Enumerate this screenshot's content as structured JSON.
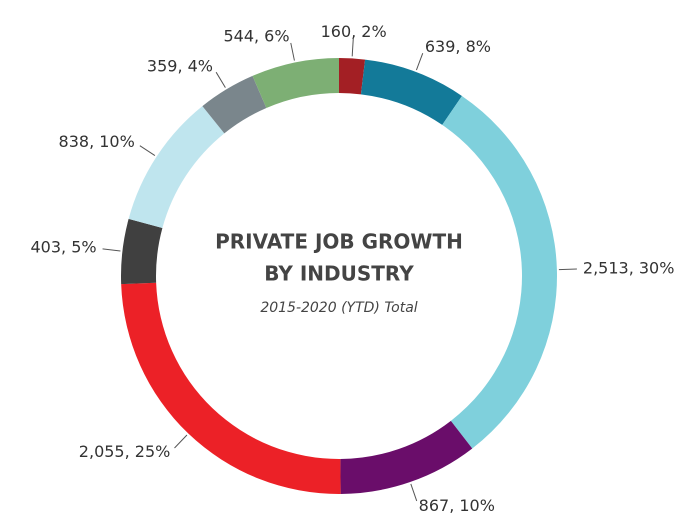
{
  "chart_data": {
    "type": "donut",
    "title": [
      "PRIVATE JOB GROWTH",
      "BY INDUSTRY"
    ],
    "subtitle": "2015-2020 (YTD) Total",
    "values": [
      160,
      639,
      2513,
      867,
      2055,
      403,
      838,
      359,
      544
    ],
    "value_labels": [
      "160, 2%",
      "639, 8%",
      "2,513, 30%",
      "867, 10%",
      "2,055, 25%",
      "403, 5%",
      "838, 10%",
      "359, 4%",
      "544, 6%"
    ],
    "colors": [
      "#a31f24",
      "#137a99",
      "#7fd0dc",
      "#6a0d6a",
      "#ec2127",
      "#404040",
      "#bfe5ee",
      "#7a868c",
      "#7daf74"
    ]
  }
}
